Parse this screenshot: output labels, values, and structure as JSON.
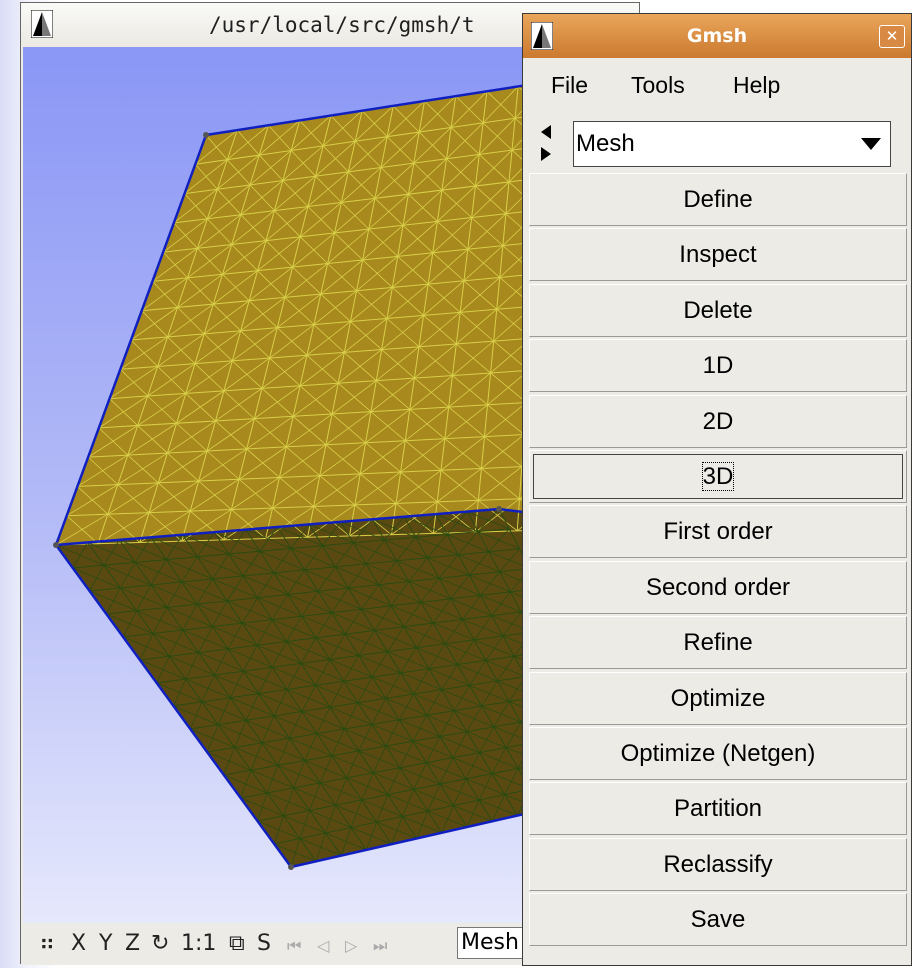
{
  "back_window": {
    "title": "/usr/local/src/gmsh/t",
    "status": {
      "icons": [
        "⠶",
        "X",
        "Y",
        "Z",
        "↻",
        "1:1",
        "⧉",
        "S",
        "⏮",
        "◁",
        "▷",
        "⏭"
      ],
      "field_value": "Mesh"
    }
  },
  "gmsh_window": {
    "title": "Gmsh",
    "close_glyph": "✕",
    "menu": [
      "File",
      "Tools",
      "Help"
    ],
    "module_selector": {
      "value": "Mesh"
    },
    "buttons": [
      "Define",
      "Inspect",
      "Delete",
      "1D",
      "2D",
      "3D",
      "First order",
      "Second order",
      "Refine",
      "Optimize",
      "Optimize (Netgen)",
      "Partition",
      "Reclassify",
      "Save"
    ],
    "focused_button": "3D"
  },
  "colors": {
    "gmsh_title": "#d8883c",
    "gl_background": "#8a97f5",
    "mesh_edges": "#1020c0",
    "mesh_top": "#d8cf48",
    "mesh_side": "#8a5a14"
  }
}
